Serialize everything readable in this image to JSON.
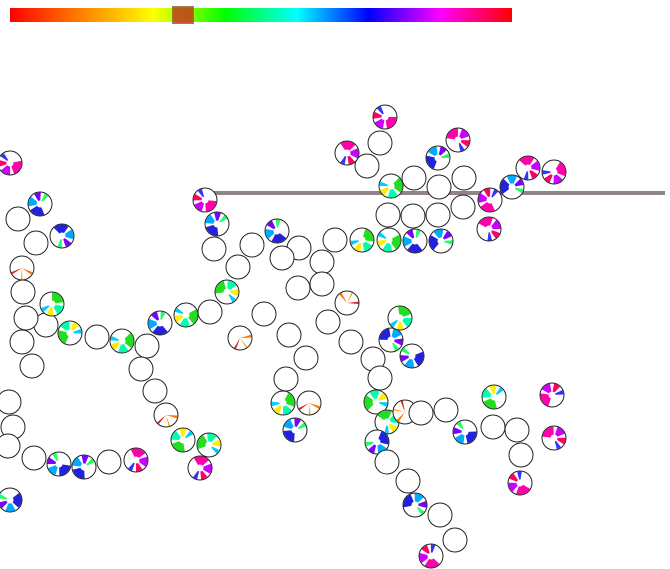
{
  "colors": {
    "background": "#ffffff",
    "node_outline": "#222222",
    "pointer_line": "#8f8487",
    "marker": "#c23b1a",
    "spectrum": [
      "#ff0000",
      "#ff8000",
      "#ffff00",
      "#00ff00",
      "#00ffff",
      "#0000ff",
      "#ff00ff",
      "#ff0000"
    ]
  },
  "hue_bar": {
    "marker_hue": "orange-red"
  },
  "pointer": {
    "present": true
  },
  "icons": {
    "node": "circle-node-icon",
    "segment": "hue-segment"
  }
}
